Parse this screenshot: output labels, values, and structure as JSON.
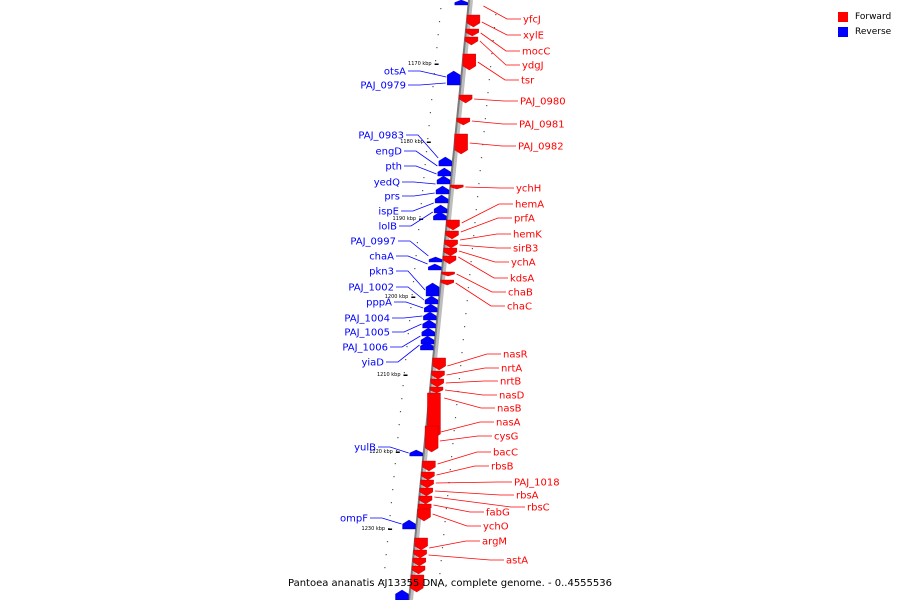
{
  "legend": {
    "forward_label": "Forward",
    "reverse_label": "Reverse",
    "forward_color": "#ff0000",
    "reverse_color": "#0000ff"
  },
  "caption": "Pantoea ananatis AJ13355 DNA, complete genome. - 0..4555536",
  "scale_ticks": [
    "1170 kbp",
    "1180 kbp",
    "1190 kbp",
    "1200 kbp",
    "1210 kbp",
    "1220 kbp",
    "1230 kbp"
  ],
  "forward_genes": [
    "yfcJ",
    "xylE",
    "mocC",
    "ydgJ",
    "tsr",
    "PAJ_0980",
    "PAJ_0981",
    "PAJ_0982",
    "ychH",
    "hemA",
    "prfA",
    "hemK",
    "sirB3",
    "ychA",
    "kdsA",
    "chaB",
    "chaC",
    "nasR",
    "nrtA",
    "nrtB",
    "nasD",
    "nasB",
    "nasA",
    "cysG",
    "bacC",
    "rbsB",
    "PAJ_1018",
    "rbsA",
    "rbsC",
    "fabG",
    "ychO",
    "argM",
    "astA"
  ],
  "reverse_genes": [
    "otsA",
    "PAJ_0979",
    "PAJ_0983",
    "engD",
    "pth",
    "yedQ",
    "prs",
    "ispE",
    "lolB",
    "PAJ_0997",
    "chaA",
    "pkn3",
    "PAJ_1002",
    "pppA",
    "PAJ_1004",
    "PAJ_1005",
    "PAJ_1006",
    "yiaD",
    "yulB",
    "ompF"
  ]
}
